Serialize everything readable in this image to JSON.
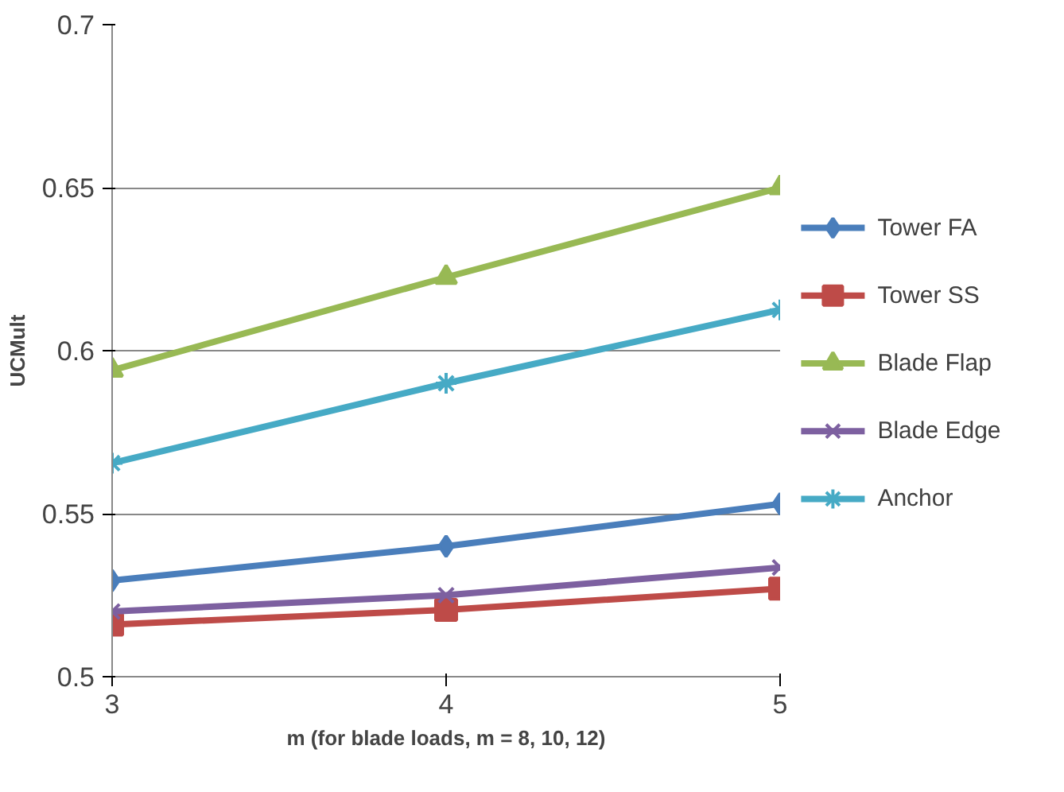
{
  "chart_data": {
    "type": "line",
    "xlabel": "m (for blade loads, m = 8, 10, 12)",
    "ylabel": "UCMult",
    "x": [
      3,
      4,
      5
    ],
    "xlim": [
      3,
      5
    ],
    "xticks": [
      3,
      4,
      5
    ],
    "ylim": [
      0.5,
      0.7
    ],
    "yticks": [
      0.5,
      0.55,
      0.6,
      0.65,
      0.7
    ],
    "grid": "y",
    "legend": "right",
    "series": [
      {
        "name": "Tower FA",
        "color": "#4a7ebb",
        "marker": "diamond",
        "values": [
          0.5295,
          0.54,
          0.553
        ]
      },
      {
        "name": "Tower SS",
        "color": "#be4b48",
        "marker": "square",
        "values": [
          0.516,
          0.5205,
          0.527
        ]
      },
      {
        "name": "Blade Flap",
        "color": "#98b954",
        "marker": "triangle",
        "values": [
          0.594,
          0.6225,
          0.65
        ]
      },
      {
        "name": "Blade Edge",
        "color": "#7d60a0",
        "marker": "x",
        "values": [
          0.52,
          0.525,
          0.5335
        ]
      },
      {
        "name": "Anchor",
        "color": "#46aac5",
        "marker": "cross",
        "values": [
          0.5655,
          0.59,
          0.6125
        ]
      }
    ]
  }
}
